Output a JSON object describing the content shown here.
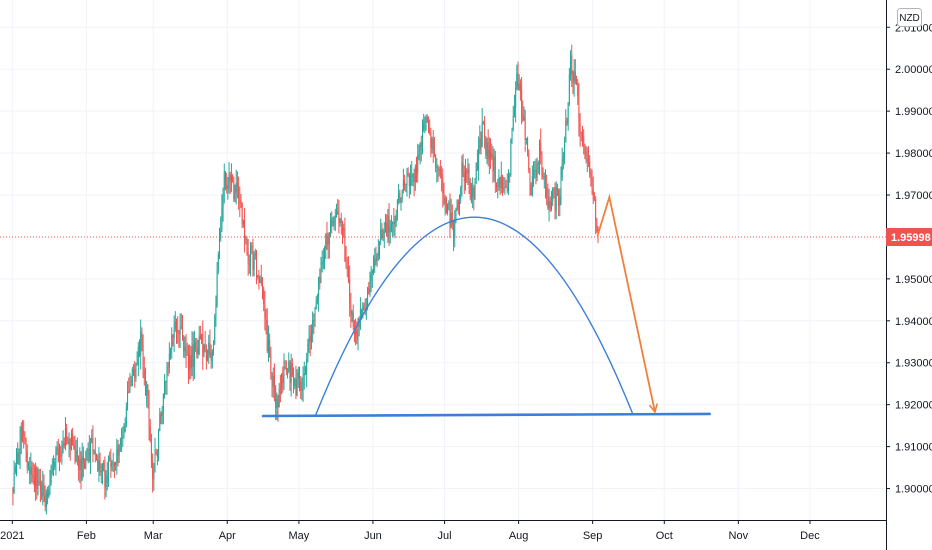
{
  "chart_data": {
    "type": "candlestick",
    "currency": "NZD",
    "y_ticks": [
      "2.01000",
      "2.00000",
      "1.99000",
      "1.98000",
      "1.97000",
      "1.95000",
      "1.94000",
      "1.93000",
      "1.92000",
      "1.91000",
      "1.90000"
    ],
    "y_tick_values": [
      2.01,
      2.0,
      1.99,
      1.98,
      1.97,
      1.95,
      1.94,
      1.93,
      1.92,
      1.91,
      1.9
    ],
    "ylim": [
      1.8925,
      2.0165
    ],
    "x_labels": [
      "2021",
      "Feb",
      "Mar",
      "Apr",
      "May",
      "Jun",
      "Jul",
      "Aug",
      "Sep",
      "Oct",
      "Nov",
      "Dec"
    ],
    "x_label_days": [
      1,
      32,
      60,
      91,
      121,
      152,
      182,
      213,
      244,
      274,
      305,
      335
    ],
    "x_domain_days": [
      -5,
      366
    ],
    "last_price": 1.95998,
    "last_price_text": "1.95998",
    "anchors": [
      [
        1,
        1.9
      ],
      [
        5,
        1.912
      ],
      [
        10,
        1.903
      ],
      [
        15,
        1.898
      ],
      [
        20,
        1.908
      ],
      [
        25,
        1.913
      ],
      [
        30,
        1.905
      ],
      [
        35,
        1.91
      ],
      [
        40,
        1.903
      ],
      [
        45,
        1.908
      ],
      [
        50,
        1.922
      ],
      [
        55,
        1.935
      ],
      [
        58,
        1.92
      ],
      [
        60,
        1.903
      ],
      [
        62,
        1.91
      ],
      [
        65,
        1.925
      ],
      [
        70,
        1.94
      ],
      [
        75,
        1.93
      ],
      [
        80,
        1.935
      ],
      [
        85,
        1.932
      ],
      [
        88,
        1.96
      ],
      [
        90,
        1.975
      ],
      [
        93,
        1.972
      ],
      [
        96,
        1.97
      ],
      [
        100,
        1.955
      ],
      [
        103,
        1.955
      ],
      [
        106,
        1.945
      ],
      [
        109,
        1.93
      ],
      [
        112,
        1.92
      ],
      [
        116,
        1.93
      ],
      [
        120,
        1.925
      ],
      [
        123,
        1.927
      ],
      [
        127,
        1.94
      ],
      [
        131,
        1.955
      ],
      [
        135,
        1.963
      ],
      [
        139,
        1.965
      ],
      [
        142,
        1.948
      ],
      [
        145,
        1.935
      ],
      [
        149,
        1.945
      ],
      [
        153,
        1.952
      ],
      [
        157,
        1.963
      ],
      [
        161,
        1.963
      ],
      [
        165,
        1.975
      ],
      [
        170,
        1.974
      ],
      [
        174,
        1.99
      ],
      [
        178,
        1.98
      ],
      [
        182,
        1.97
      ],
      [
        186,
        1.962
      ],
      [
        190,
        1.977
      ],
      [
        194,
        1.97
      ],
      [
        198,
        1.985
      ],
      [
        202,
        1.978
      ],
      [
        206,
        1.972
      ],
      [
        209,
        1.972
      ],
      [
        212,
        1.998
      ],
      [
        215,
        1.99
      ],
      [
        218,
        1.972
      ],
      [
        222,
        1.98
      ],
      [
        226,
        1.968
      ],
      [
        230,
        1.97
      ],
      [
        233,
        1.985
      ],
      [
        235,
        2.002
      ],
      [
        238,
        1.992
      ],
      [
        241,
        1.978
      ],
      [
        244,
        1.973
      ],
      [
        246,
        1.96
      ]
    ],
    "dome": {
      "start_day": 128,
      "end_day": 261,
      "start_price": 1.9175,
      "end_price": 1.9175,
      "peak_price": 1.9647
    },
    "neckline": {
      "start_day": 106,
      "end_day": 293,
      "start_price": 1.9173,
      "end_price": 1.9178
    },
    "projection": [
      [
        246,
        1.9602
      ],
      [
        251,
        1.9695
      ],
      [
        270,
        1.9185
      ]
    ]
  }
}
